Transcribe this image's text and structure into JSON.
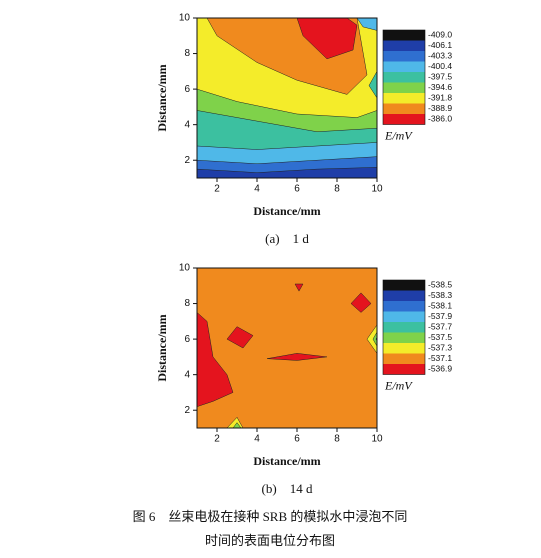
{
  "chart_data": [
    {
      "type": "contour",
      "panel": "(a)　1 d",
      "xlabel": "Distance/mm",
      "ylabel": "Distance/mm",
      "xlim": [
        1,
        10
      ],
      "ylim": [
        1,
        10
      ],
      "xticks": [
        2,
        4,
        6,
        8,
        10
      ],
      "yticks": [
        2,
        4,
        6,
        8,
        10
      ],
      "colorbar": {
        "label": "E/mV",
        "ticks": [
          {
            "value": -409,
            "label": "-409.0"
          },
          -406.1,
          -403.3,
          -400.4,
          -397.5,
          -394.6,
          -391.8,
          -388.9,
          {
            "value": -386,
            "label": "-386.0"
          }
        ],
        "colors": [
          "#111111",
          "#1f3ea8",
          "#2f6fd0",
          "#4fb8e8",
          "#3cc0a0",
          "#7fd24a",
          "#f4ec2a",
          "#f08a1e",
          "#e4141e"
        ]
      },
      "regions": [
        {
          "z": -406.1,
          "x": [
            1,
            10,
            10,
            1
          ],
          "y": [
            1,
            1,
            10,
            10
          ]
        },
        {
          "z": -403.3,
          "x": [
            1,
            4,
            7,
            10,
            10,
            1
          ],
          "y": [
            1.5,
            1.3,
            1.5,
            1.6,
            10,
            10
          ]
        },
        {
          "z": -400.4,
          "x": [
            1,
            4,
            7,
            10,
            10,
            1
          ],
          "y": [
            2,
            1.8,
            2,
            2.2,
            10,
            10
          ]
        },
        {
          "z": -397.5,
          "x": [
            1,
            4,
            7,
            10,
            10,
            1
          ],
          "y": [
            2.8,
            2.6,
            2.8,
            3,
            10,
            10
          ]
        },
        {
          "z": -394.6,
          "x": [
            1,
            4,
            7,
            10,
            10,
            1
          ],
          "y": [
            4.8,
            4.2,
            3.6,
            3.8,
            10,
            10
          ]
        },
        {
          "z": -391.8,
          "x": [
            1,
            3,
            6,
            9,
            10,
            10,
            1
          ],
          "y": [
            6,
            5.3,
            4.6,
            4.4,
            4.8,
            10,
            10
          ]
        },
        {
          "z": -388.9,
          "x": [
            1.5,
            2,
            4,
            6,
            8.5,
            9.5,
            9
          ],
          "y": [
            10,
            9,
            7.5,
            6.5,
            5.7,
            6.8,
            10
          ]
        },
        {
          "z": -386,
          "x": [
            6,
            6.3,
            7.5,
            8.8,
            9,
            8.5
          ],
          "y": [
            10,
            9,
            7.7,
            8.2,
            9.6,
            10
          ]
        },
        {
          "z": -397.5,
          "x": [
            10,
            9.6,
            10
          ],
          "y": [
            5.5,
            6.2,
            7
          ]
        },
        {
          "z": -400.4,
          "x": [
            9,
            9.3,
            10,
            10
          ],
          "y": [
            10,
            9.5,
            9.3,
            10
          ]
        }
      ]
    },
    {
      "type": "contour",
      "panel": "(b)　14 d",
      "xlabel": "Distance/mm",
      "ylabel": "Distance/mm",
      "xlim": [
        1,
        10
      ],
      "ylim": [
        1,
        10
      ],
      "xticks": [
        2,
        4,
        6,
        8,
        10
      ],
      "yticks": [
        2,
        4,
        6,
        8,
        10
      ],
      "colorbar": {
        "label": "E/mV",
        "ticks": [
          -538.5,
          -538.3,
          -538.1,
          -537.9,
          -537.7,
          -537.5,
          -537.3,
          -537.1,
          -536.9
        ],
        "colors": [
          "#111111",
          "#1f3ea8",
          "#2f6fd0",
          "#4fb8e8",
          "#3cc0a0",
          "#7fd24a",
          "#f4ec2a",
          "#f08a1e",
          "#e4141e"
        ]
      },
      "regions": [
        {
          "z": -537.1,
          "x": [
            1,
            10,
            10,
            1
          ],
          "y": [
            1,
            1,
            10,
            10
          ]
        },
        {
          "z": -536.9,
          "x": [
            1,
            1.5,
            1.8,
            2.5,
            2.8,
            1.8,
            1
          ],
          "y": [
            7.5,
            7,
            5,
            4,
            3,
            2.5,
            2.2
          ]
        },
        {
          "z": -536.9,
          "x": [
            2.5,
            3,
            3.8,
            3.3
          ],
          "y": [
            6,
            6.7,
            6.2,
            5.5
          ]
        },
        {
          "z": -536.9,
          "x": [
            4.5,
            6,
            7.5,
            6
          ],
          "y": [
            4.9,
            5.2,
            5,
            4.8
          ]
        },
        {
          "z": -536.9,
          "x": [
            8.7,
            9.2,
            9.7,
            9.2
          ],
          "y": [
            8,
            8.6,
            8,
            7.5
          ]
        },
        {
          "z": -536.9,
          "x": [
            5.9,
            6.1,
            6.3
          ],
          "y": [
            9.1,
            8.7,
            9.1
          ]
        },
        {
          "z": -537.3,
          "x": [
            9.5,
            10,
            10
          ],
          "y": [
            6,
            5.2,
            6.8
          ]
        },
        {
          "z": -537.5,
          "x": [
            9.8,
            10,
            10
          ],
          "y": [
            6,
            5.6,
            6.4
          ]
        },
        {
          "z": -538.1,
          "x": [
            9.95,
            10,
            10
          ],
          "y": [
            6,
            5.9,
            6.1
          ]
        },
        {
          "z": -537.3,
          "x": [
            2.5,
            3,
            3.3
          ],
          "y": [
            1,
            1.6,
            1
          ]
        },
        {
          "z": -537.5,
          "x": [
            2.8,
            3,
            3.2
          ],
          "y": [
            1,
            1.3,
            1
          ]
        }
      ]
    }
  ],
  "caption": [
    "图 6　丝束电极在接种 SRB 的模拟水中浸泡不同",
    "时间的表面电位分布图"
  ]
}
